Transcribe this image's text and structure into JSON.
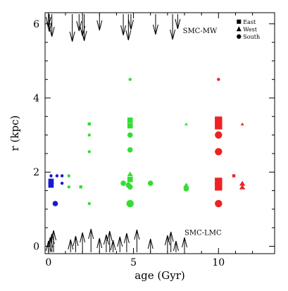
{
  "chart_data": {
    "type": "scatter",
    "title": "",
    "xlabel": "age (Gyr)",
    "ylabel": "r (kpc)",
    "xlim": [
      -0.2,
      13.3
    ],
    "ylim": [
      -0.2,
      6.3
    ],
    "x_ticks": [
      0,
      5,
      10
    ],
    "y_ticks": [
      0,
      2,
      4,
      6
    ],
    "legend": {
      "placement": "top-right",
      "entries": [
        {
          "label": "East",
          "marker": "square"
        },
        {
          "label": "West",
          "marker": "triangle"
        },
        {
          "label": "South",
          "marker": "circle"
        }
      ]
    },
    "annotations": [
      "SMC-MW",
      "SMC-LMC"
    ],
    "series": [
      {
        "color": "#1a1ad0",
        "points": [
          {
            "x": 0.15,
            "y": 1.9,
            "size": 1,
            "marker": "circle"
          },
          {
            "x": 0.15,
            "y": 1.65,
            "size": 2,
            "marker": "square"
          },
          {
            "x": 0.15,
            "y": 1.75,
            "size": 2,
            "marker": "square"
          },
          {
            "x": 0.5,
            "y": 1.9,
            "size": 1,
            "marker": "circle"
          },
          {
            "x": 0.8,
            "y": 1.9,
            "size": 1,
            "marker": "circle"
          },
          {
            "x": 0.8,
            "y": 1.7,
            "size": 1,
            "marker": "circle"
          },
          {
            "x": 0.4,
            "y": 1.15,
            "size": 2,
            "marker": "circle"
          }
        ]
      },
      {
        "color": "#33dd33",
        "points": [
          {
            "x": 1.2,
            "y": 1.9,
            "size": 1,
            "marker": "circle"
          },
          {
            "x": 1.2,
            "y": 1.6,
            "size": 1,
            "marker": "circle"
          },
          {
            "x": 1.9,
            "y": 1.6,
            "size": 1,
            "marker": "square"
          },
          {
            "x": 2.4,
            "y": 3.3,
            "size": 1,
            "marker": "square"
          },
          {
            "x": 2.4,
            "y": 3.0,
            "size": 1,
            "marker": "circle"
          },
          {
            "x": 2.4,
            "y": 2.55,
            "size": 1,
            "marker": "circle"
          },
          {
            "x": 2.4,
            "y": 1.15,
            "size": 1,
            "marker": "circle"
          },
          {
            "x": 4.4,
            "y": 1.7,
            "size": 2,
            "marker": "circle"
          },
          {
            "x": 4.7,
            "y": 1.65,
            "size": 2,
            "marker": "circle"
          },
          {
            "x": 4.8,
            "y": 4.5,
            "size": 1,
            "marker": "circle"
          },
          {
            "x": 4.8,
            "y": 3.4,
            "size": 2,
            "marker": "square"
          },
          {
            "x": 4.8,
            "y": 3.25,
            "size": 2,
            "marker": "square"
          },
          {
            "x": 4.8,
            "y": 3.0,
            "size": 2,
            "marker": "circle"
          },
          {
            "x": 4.8,
            "y": 2.6,
            "size": 2,
            "marker": "circle"
          },
          {
            "x": 4.8,
            "y": 1.95,
            "size": 2,
            "marker": "triangle"
          },
          {
            "x": 4.8,
            "y": 1.8,
            "size": 2,
            "marker": "square"
          },
          {
            "x": 4.8,
            "y": 1.6,
            "size": 2,
            "marker": "circle"
          },
          {
            "x": 4.8,
            "y": 1.15,
            "size": 3,
            "marker": "circle"
          },
          {
            "x": 6.0,
            "y": 1.7,
            "size": 2,
            "marker": "circle"
          },
          {
            "x": 8.1,
            "y": 3.3,
            "size": 1,
            "marker": "triangle"
          },
          {
            "x": 8.1,
            "y": 1.65,
            "size": 2,
            "marker": "triangle"
          },
          {
            "x": 8.1,
            "y": 1.55,
            "size": 2,
            "marker": "circle"
          }
        ]
      },
      {
        "color": "#ee2222",
        "points": [
          {
            "x": 10.0,
            "y": 4.5,
            "size": 1,
            "marker": "circle"
          },
          {
            "x": 10.0,
            "y": 3.4,
            "size": 3,
            "marker": "square"
          },
          {
            "x": 10.0,
            "y": 3.25,
            "size": 3,
            "marker": "square"
          },
          {
            "x": 10.0,
            "y": 3.0,
            "size": 3,
            "marker": "circle"
          },
          {
            "x": 10.0,
            "y": 2.55,
            "size": 3,
            "marker": "circle"
          },
          {
            "x": 10.0,
            "y": 1.75,
            "size": 3,
            "marker": "square"
          },
          {
            "x": 10.0,
            "y": 1.6,
            "size": 3,
            "marker": "square"
          },
          {
            "x": 10.0,
            "y": 1.15,
            "size": 3,
            "marker": "circle"
          },
          {
            "x": 11.4,
            "y": 3.3,
            "size": 1,
            "marker": "triangle"
          },
          {
            "x": 10.9,
            "y": 1.9,
            "size": 1,
            "marker": "square"
          },
          {
            "x": 11.4,
            "y": 1.7,
            "size": 2,
            "marker": "triangle"
          },
          {
            "x": 11.4,
            "y": 1.6,
            "size": 2,
            "marker": "triangle"
          }
        ]
      }
    ],
    "arrows_top": [
      0.0,
      0.05,
      0.2,
      1.4,
      1.8,
      2.0,
      2.1,
      3.0,
      4.4,
      4.7,
      4.85,
      6.3,
      7.3,
      7.6
    ],
    "arrows_bottom": [
      0.0,
      0.1,
      0.2,
      0.3,
      1.3,
      1.6,
      2.0,
      2.5,
      3.0,
      3.4,
      3.6,
      3.8,
      4.2,
      4.6,
      5.2,
      6.0,
      7.0,
      7.2,
      7.5,
      8.0
    ]
  }
}
